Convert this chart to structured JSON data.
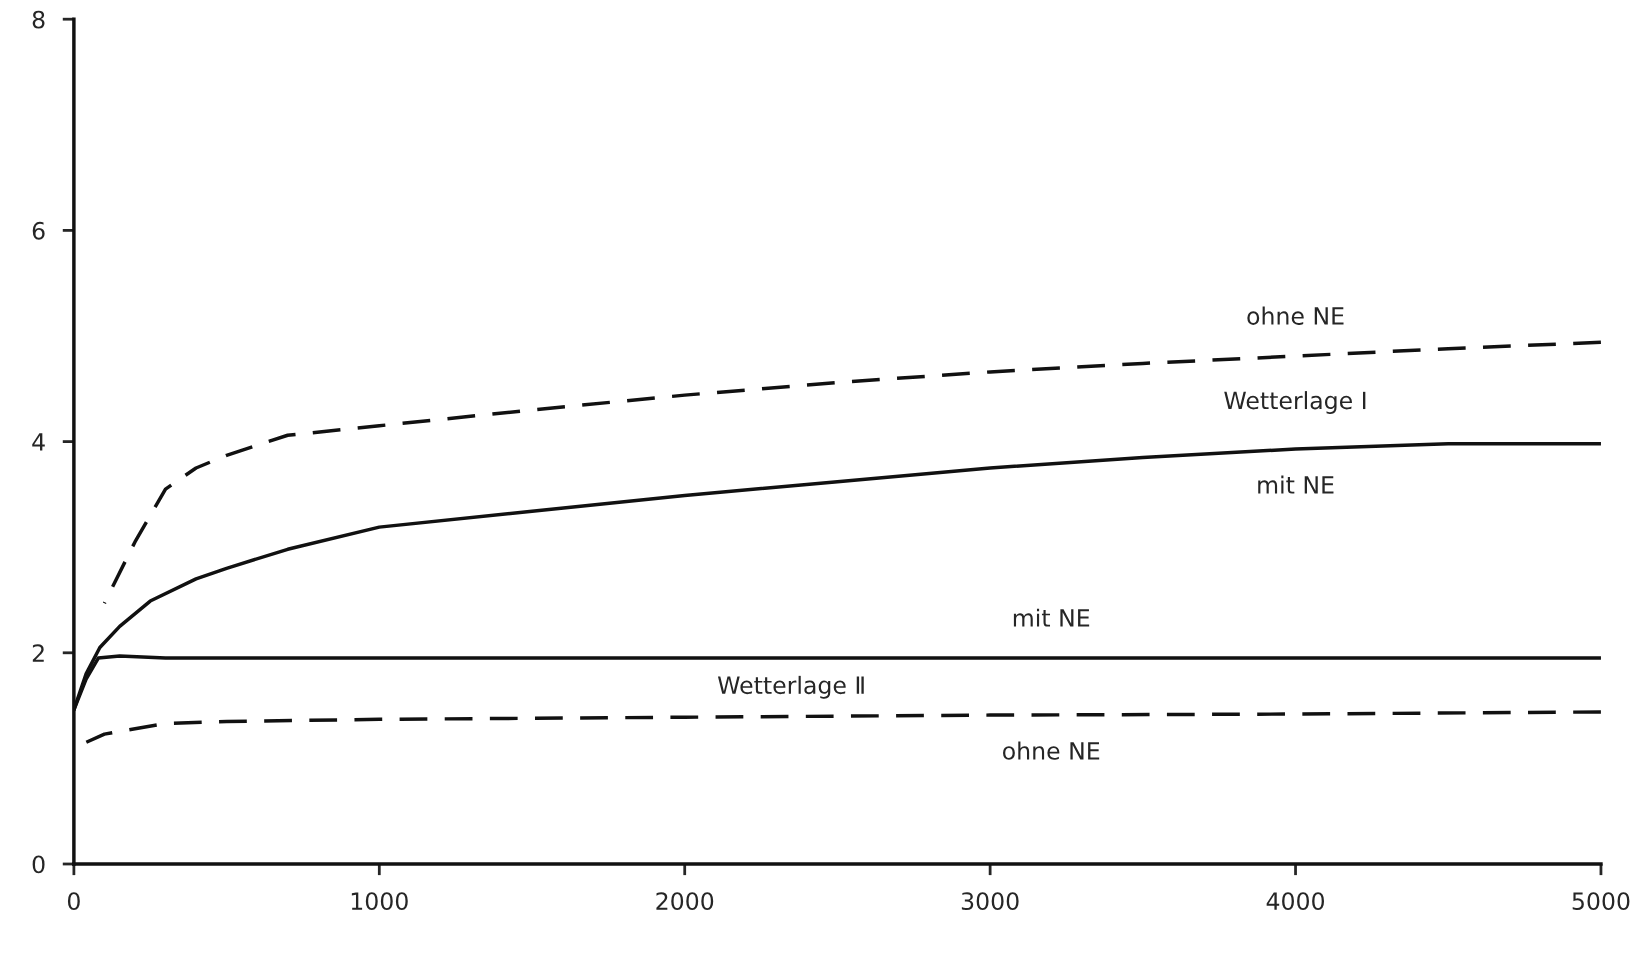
{
  "chart_data": {
    "type": "line",
    "xlim": [
      0,
      5000
    ],
    "ylim": [
      0,
      8
    ],
    "xticks": [
      0,
      1000,
      2000,
      3000,
      4000,
      5000
    ],
    "yticks": [
      0,
      2,
      4,
      6,
      8
    ],
    "grid": false,
    "legend": false,
    "marker": "none",
    "series": [
      {
        "name": "mit NE",
        "color": "#111111",
        "line_style": "solid",
        "x": [
          0,
          40,
          85,
          150,
          250,
          400,
          500,
          700,
          1000,
          1500,
          2000,
          2500,
          3000,
          3500,
          4000,
          4500,
          5000
        ],
        "values": [
          1.46,
          1.8,
          2.05,
          2.25,
          2.49,
          2.7,
          2.8,
          2.98,
          3.19,
          3.34,
          3.49,
          3.62,
          3.75,
          3.85,
          3.93,
          3.98,
          3.98
        ]
      },
      {
        "name": "ohne NE",
        "color": "#111111",
        "line_style": "dashed",
        "x": [
          100,
          200,
          300,
          400,
          500,
          700,
          1000,
          1500,
          2000,
          2500,
          3000,
          3500,
          4000,
          4500,
          5000
        ],
        "values": [
          2.47,
          3.05,
          3.55,
          3.75,
          3.87,
          4.06,
          4.15,
          4.3,
          4.44,
          4.56,
          4.66,
          4.74,
          4.81,
          4.88,
          4.94
        ]
      },
      {
        "name": "mit NE",
        "color": "#111111",
        "line_style": "solid",
        "x": [
          0,
          40,
          80,
          150,
          300,
          1000,
          2000,
          3000,
          4000,
          5000
        ],
        "values": [
          1.46,
          1.75,
          1.95,
          1.97,
          1.95,
          1.95,
          1.95,
          1.95,
          1.95,
          1.95
        ]
      },
      {
        "name": "ohne NE",
        "color": "#111111",
        "line_style": "dashed",
        "x": [
          0,
          100,
          300,
          500,
          1000,
          2000,
          3000,
          4000,
          5000
        ],
        "values": [
          1.1,
          1.23,
          1.33,
          1.35,
          1.37,
          1.39,
          1.41,
          1.42,
          1.44
        ]
      }
    ],
    "annotations": [
      "Wetterlage Ⅰ",
      "Wetterlage Ⅱ"
    ]
  }
}
